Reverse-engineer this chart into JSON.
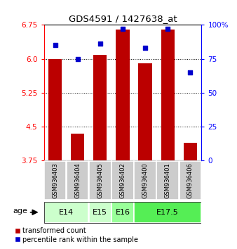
{
  "title": "GDS4591 / 1427638_at",
  "samples": [
    "GSM936403",
    "GSM936404",
    "GSM936405",
    "GSM936402",
    "GSM936400",
    "GSM936401",
    "GSM936406"
  ],
  "transformed_counts": [
    6.0,
    4.35,
    6.08,
    6.65,
    5.9,
    6.65,
    4.15
  ],
  "percentile_ranks": [
    85,
    75,
    86,
    97,
    83,
    97,
    65
  ],
  "age_groups": [
    {
      "label": "E14",
      "samples": [
        "GSM936403",
        "GSM936404"
      ],
      "color": "#ccffcc"
    },
    {
      "label": "E15",
      "samples": [
        "GSM936405"
      ],
      "color": "#ccffcc"
    },
    {
      "label": "E16",
      "samples": [
        "GSM936402"
      ],
      "color": "#99ff99"
    },
    {
      "label": "E17.5",
      "samples": [
        "GSM936400",
        "GSM936401",
        "GSM936406"
      ],
      "color": "#55ee55"
    }
  ],
  "ylim_left": [
    3.75,
    6.75
  ],
  "ylim_right": [
    0,
    100
  ],
  "yticks_left": [
    3.75,
    4.5,
    5.25,
    6.0,
    6.75
  ],
  "yticks_right": [
    0,
    25,
    50,
    75,
    100
  ],
  "bar_color": "#bb0000",
  "dot_color": "#0000cc",
  "bg_color_sample": "#cccccc",
  "legend_bar_label": "transformed count",
  "legend_dot_label": "percentile rank within the sample",
  "age_label": "age"
}
